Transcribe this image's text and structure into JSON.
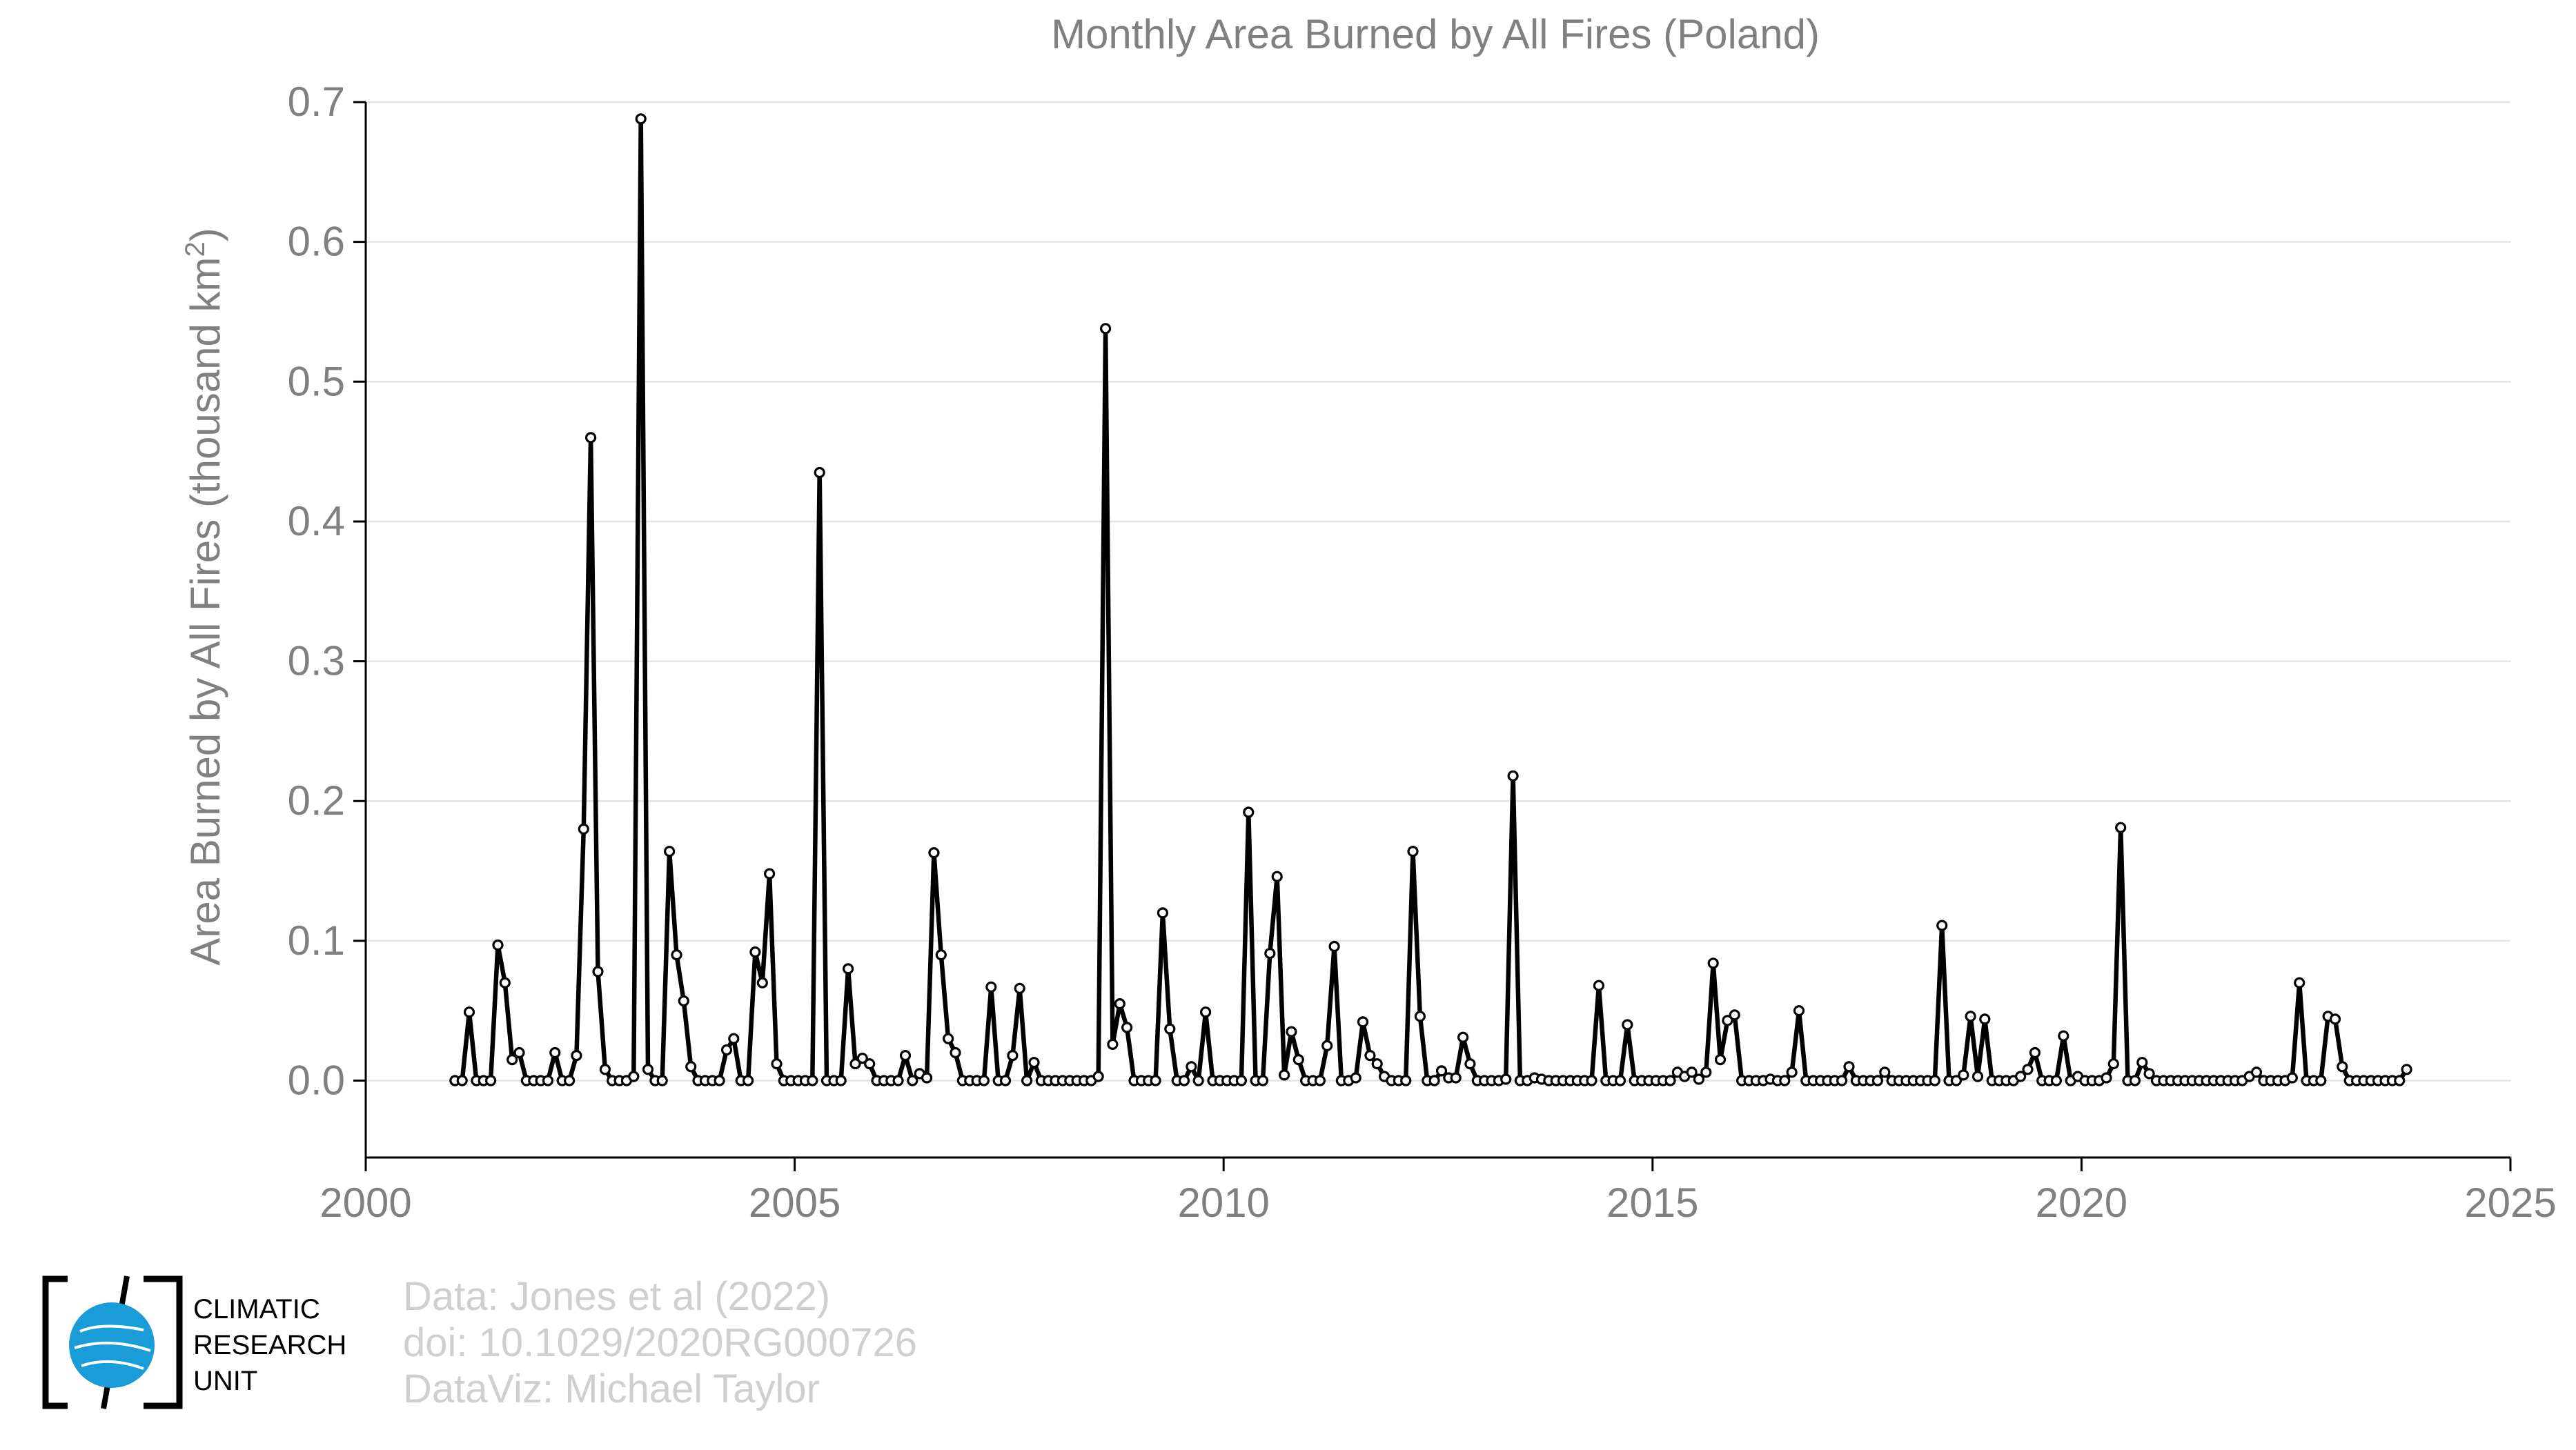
{
  "chart_data": {
    "type": "line",
    "title": "Monthly Area Burned by All Fires (Poland)",
    "ylabel": "Area Burned by All Fires (thousand km",
    "ylabel_sup": "2",
    "ylabel_end": ")",
    "xlim": [
      2000,
      2025
    ],
    "ylim": [
      -0.055,
      0.7
    ],
    "xticks": [
      2000,
      2005,
      2010,
      2015,
      2020,
      2025
    ],
    "yticks": [
      0.0,
      0.1,
      0.2,
      0.3,
      0.4,
      0.5,
      0.6,
      0.7
    ],
    "xtick_labels": [
      "2000",
      "2005",
      "2010",
      "2015",
      "2020",
      "2025"
    ],
    "ytick_labels": [
      "0.0",
      "0.1",
      "0.2",
      "0.3",
      "0.4",
      "0.5",
      "0.6",
      "0.7"
    ],
    "grid": true,
    "start": 2001.04,
    "step": 0.0833333,
    "series": [
      {
        "values": [
          0,
          0,
          0.049,
          0,
          0,
          0,
          0.097,
          0.07,
          0.015,
          0.02,
          0,
          0,
          0,
          0,
          0.02,
          0,
          0,
          0.018,
          0.18,
          0.46,
          0.078,
          0.008,
          0,
          0,
          0,
          0.003,
          0.688,
          0.008,
          0,
          0,
          0.164,
          0.09,
          0.057,
          0.01,
          0,
          0,
          0,
          0,
          0.022,
          0.03,
          0,
          0,
          0.092,
          0.07,
          0.148,
          0.012,
          0,
          0,
          0,
          0,
          0,
          0.435,
          0,
          0,
          0,
          0.08,
          0.012,
          0.016,
          0.012,
          0,
          0,
          0,
          0,
          0.018,
          0,
          0.005,
          0.002,
          0.163,
          0.09,
          0.03,
          0.02,
          0,
          0,
          0,
          0,
          0.067,
          0,
          0,
          0.018,
          0.066,
          0,
          0.013,
          0,
          0,
          0,
          0,
          0,
          0,
          0,
          0,
          0.003,
          0.538,
          0.026,
          0.055,
          0.038,
          0,
          0,
          0,
          0,
          0.12,
          0.037,
          0,
          0,
          0.01,
          0,
          0.049,
          0,
          0,
          0,
          0,
          0,
          0.192,
          0,
          0,
          0.091,
          0.146,
          0.004,
          0.035,
          0.015,
          0,
          0,
          0,
          0.025,
          0.096,
          0,
          0,
          0.002,
          0.042,
          0.018,
          0.012,
          0.003,
          0,
          0,
          0,
          0.164,
          0.046,
          0,
          0,
          0.007,
          0.002,
          0.002,
          0.031,
          0.012,
          0,
          0,
          0,
          0,
          0.001,
          0.218,
          0,
          0,
          0.002,
          0.001,
          0,
          0,
          0,
          0,
          0,
          0,
          0,
          0.068,
          0,
          0,
          0,
          0.04,
          0,
          0,
          0,
          0,
          0,
          0,
          0.006,
          0.003,
          0.006,
          0.001,
          0.006,
          0.084,
          0.015,
          0.043,
          0.047,
          0,
          0,
          0,
          0,
          0.001,
          0,
          0,
          0.006,
          0.05,
          0,
          0,
          0,
          0,
          0,
          0,
          0.01,
          0,
          0,
          0,
          0,
          0.006,
          0,
          0,
          0,
          0,
          0,
          0,
          0,
          0.111,
          0,
          0,
          0.004,
          0.046,
          0.003,
          0.044,
          0,
          0,
          0,
          0,
          0.003,
          0.008,
          0.02,
          0,
          0,
          0,
          0.032,
          0,
          0.003,
          0,
          0,
          0,
          0.002,
          0.012,
          0.181,
          0,
          0,
          0.013,
          0.005,
          0,
          0,
          0,
          0,
          0,
          0,
          0,
          0,
          0,
          0,
          0,
          0,
          0,
          0.003,
          0.006,
          0,
          0,
          0,
          0,
          0.002,
          0.07,
          0,
          0,
          0,
          0.046,
          0.044,
          0.01,
          0,
          0,
          0,
          0,
          0,
          0,
          0,
          0,
          0.008
        ]
      }
    ]
  },
  "credits": {
    "line1": "Data: Jones et al (2022)",
    "line2": "doi: 10.1029/2020RG000726",
    "line3": "DataViz: Michael Taylor"
  },
  "logo": {
    "line1": "CLIMATIC",
    "line2": "RESEARCH",
    "line3": "UNIT",
    "color": "#1a9cd8"
  }
}
